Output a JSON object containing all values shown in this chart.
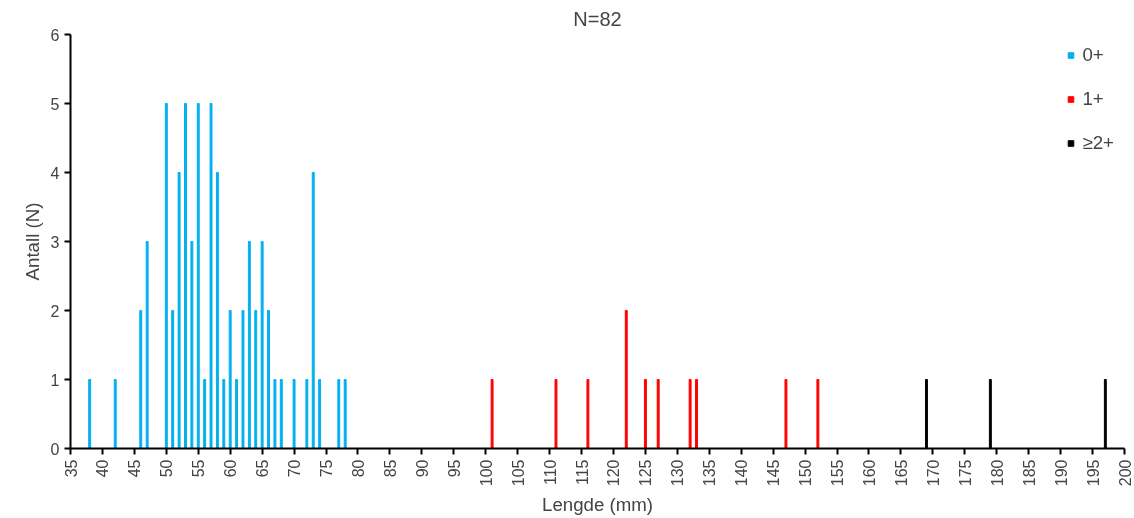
{
  "chart_data": {
    "type": "bar",
    "title": "N=82",
    "xlabel": "Lengde (mm)",
    "ylabel": "Antall (N)",
    "xlim": [
      35,
      200
    ],
    "xticks": [
      35,
      40,
      45,
      50,
      55,
      60,
      65,
      70,
      75,
      80,
      85,
      90,
      95,
      100,
      105,
      110,
      115,
      120,
      125,
      130,
      135,
      140,
      145,
      150,
      155,
      160,
      165,
      170,
      175,
      180,
      185,
      190,
      195,
      200
    ],
    "ylim": [
      0,
      6
    ],
    "yticks": [
      0,
      1,
      2,
      3,
      4,
      5,
      6
    ],
    "grid": false,
    "legend": "top right",
    "series": [
      {
        "name": "0+",
        "color": "#00b0f0",
        "x": [
          38,
          42,
          46,
          47,
          50,
          51,
          52,
          53,
          54,
          55,
          56,
          57,
          58,
          59,
          60,
          61,
          62,
          63,
          64,
          65,
          66,
          67,
          68,
          70,
          72,
          73,
          74,
          77,
          78
        ],
        "values": [
          1,
          1,
          2,
          3,
          5,
          2,
          4,
          5,
          3,
          5,
          1,
          5,
          4,
          1,
          2,
          1,
          2,
          3,
          2,
          3,
          2,
          1,
          1,
          1,
          1,
          4,
          1,
          1,
          1
        ]
      },
      {
        "name": "1+",
        "color": "#ff0000",
        "x": [
          101,
          111,
          116,
          122,
          125,
          127,
          132,
          133,
          147,
          152
        ],
        "values": [
          1,
          1,
          1,
          2,
          1,
          1,
          1,
          1,
          1,
          1
        ]
      },
      {
        "name": "≥2+",
        "color": "#000000",
        "x": [
          169,
          179,
          197
        ],
        "values": [
          1,
          1,
          1
        ]
      }
    ]
  }
}
